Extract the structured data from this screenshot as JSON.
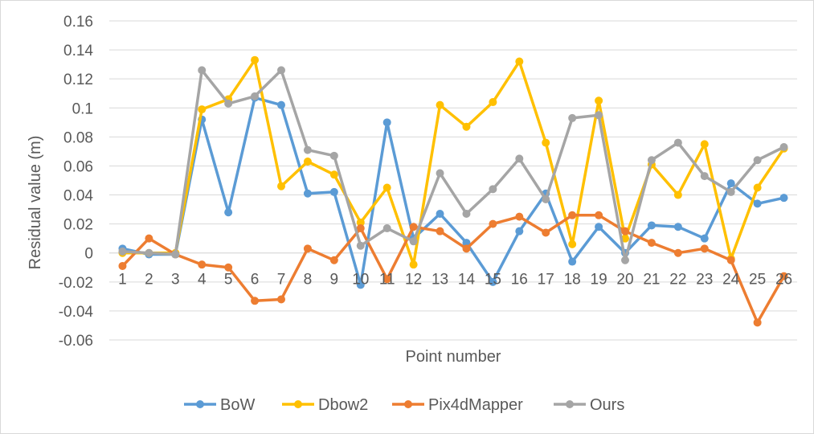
{
  "chart_data": {
    "type": "line",
    "title": "",
    "xlabel": "Point number",
    "ylabel": "Residual value (m)",
    "ylim": [
      -0.06,
      0.16
    ],
    "yticks": [
      -0.06,
      -0.04,
      -0.02,
      0,
      0.02,
      0.04,
      0.06,
      0.08,
      0.1,
      0.12,
      0.14,
      0.16
    ],
    "ytick_labels": [
      "-0.06",
      "-0.04",
      "-0.02",
      "0",
      "0.02",
      "0.04",
      "0.06",
      "0.08",
      "0.1",
      "0.12",
      "0.14",
      "0.16"
    ],
    "categories": [
      "1",
      "2",
      "3",
      "4",
      "5",
      "6",
      "7",
      "8",
      "9",
      "10",
      "11",
      "12",
      "13",
      "14",
      "15",
      "16",
      "17",
      "18",
      "19",
      "20",
      "21",
      "22",
      "23",
      "24",
      "25",
      "26"
    ],
    "grid": true,
    "legend_position": "bottom",
    "series": [
      {
        "name": "BoW",
        "color": "#5b9bd5",
        "values": [
          0.003,
          -0.001,
          -0.001,
          0.092,
          0.028,
          0.107,
          0.102,
          0.041,
          0.042,
          -0.022,
          0.09,
          0.01,
          0.027,
          0.007,
          -0.02,
          0.015,
          0.041,
          -0.006,
          0.018,
          0.0,
          0.019,
          0.018,
          0.01,
          0.048,
          0.034,
          0.038
        ]
      },
      {
        "name": "Dbow2",
        "color": "#ffc000",
        "values": [
          0.0,
          0.0,
          0.0,
          0.099,
          0.106,
          0.133,
          0.046,
          0.063,
          0.054,
          0.021,
          0.045,
          -0.008,
          0.102,
          0.087,
          0.104,
          0.132,
          0.076,
          0.006,
          0.105,
          0.01,
          0.061,
          0.04,
          0.075,
          -0.004,
          0.045,
          0.072
        ]
      },
      {
        "name": "Pix4dMapper",
        "color": "#ed7d31",
        "values": [
          -0.009,
          0.01,
          -0.001,
          -0.008,
          -0.01,
          -0.033,
          -0.032,
          0.003,
          -0.005,
          0.017,
          -0.018,
          0.018,
          0.015,
          0.003,
          0.02,
          0.025,
          0.014,
          0.026,
          0.026,
          0.015,
          0.007,
          0.0,
          0.003,
          -0.005,
          -0.048,
          -0.016
        ]
      },
      {
        "name": "Ours",
        "color": "#a5a5a5",
        "values": [
          0.001,
          0.0,
          -0.001,
          0.126,
          0.103,
          0.108,
          0.126,
          0.071,
          0.067,
          0.005,
          0.017,
          0.008,
          0.055,
          0.027,
          0.044,
          0.065,
          0.037,
          0.093,
          0.095,
          -0.005,
          0.064,
          0.076,
          0.053,
          0.042,
          0.064,
          0.073
        ]
      }
    ]
  }
}
